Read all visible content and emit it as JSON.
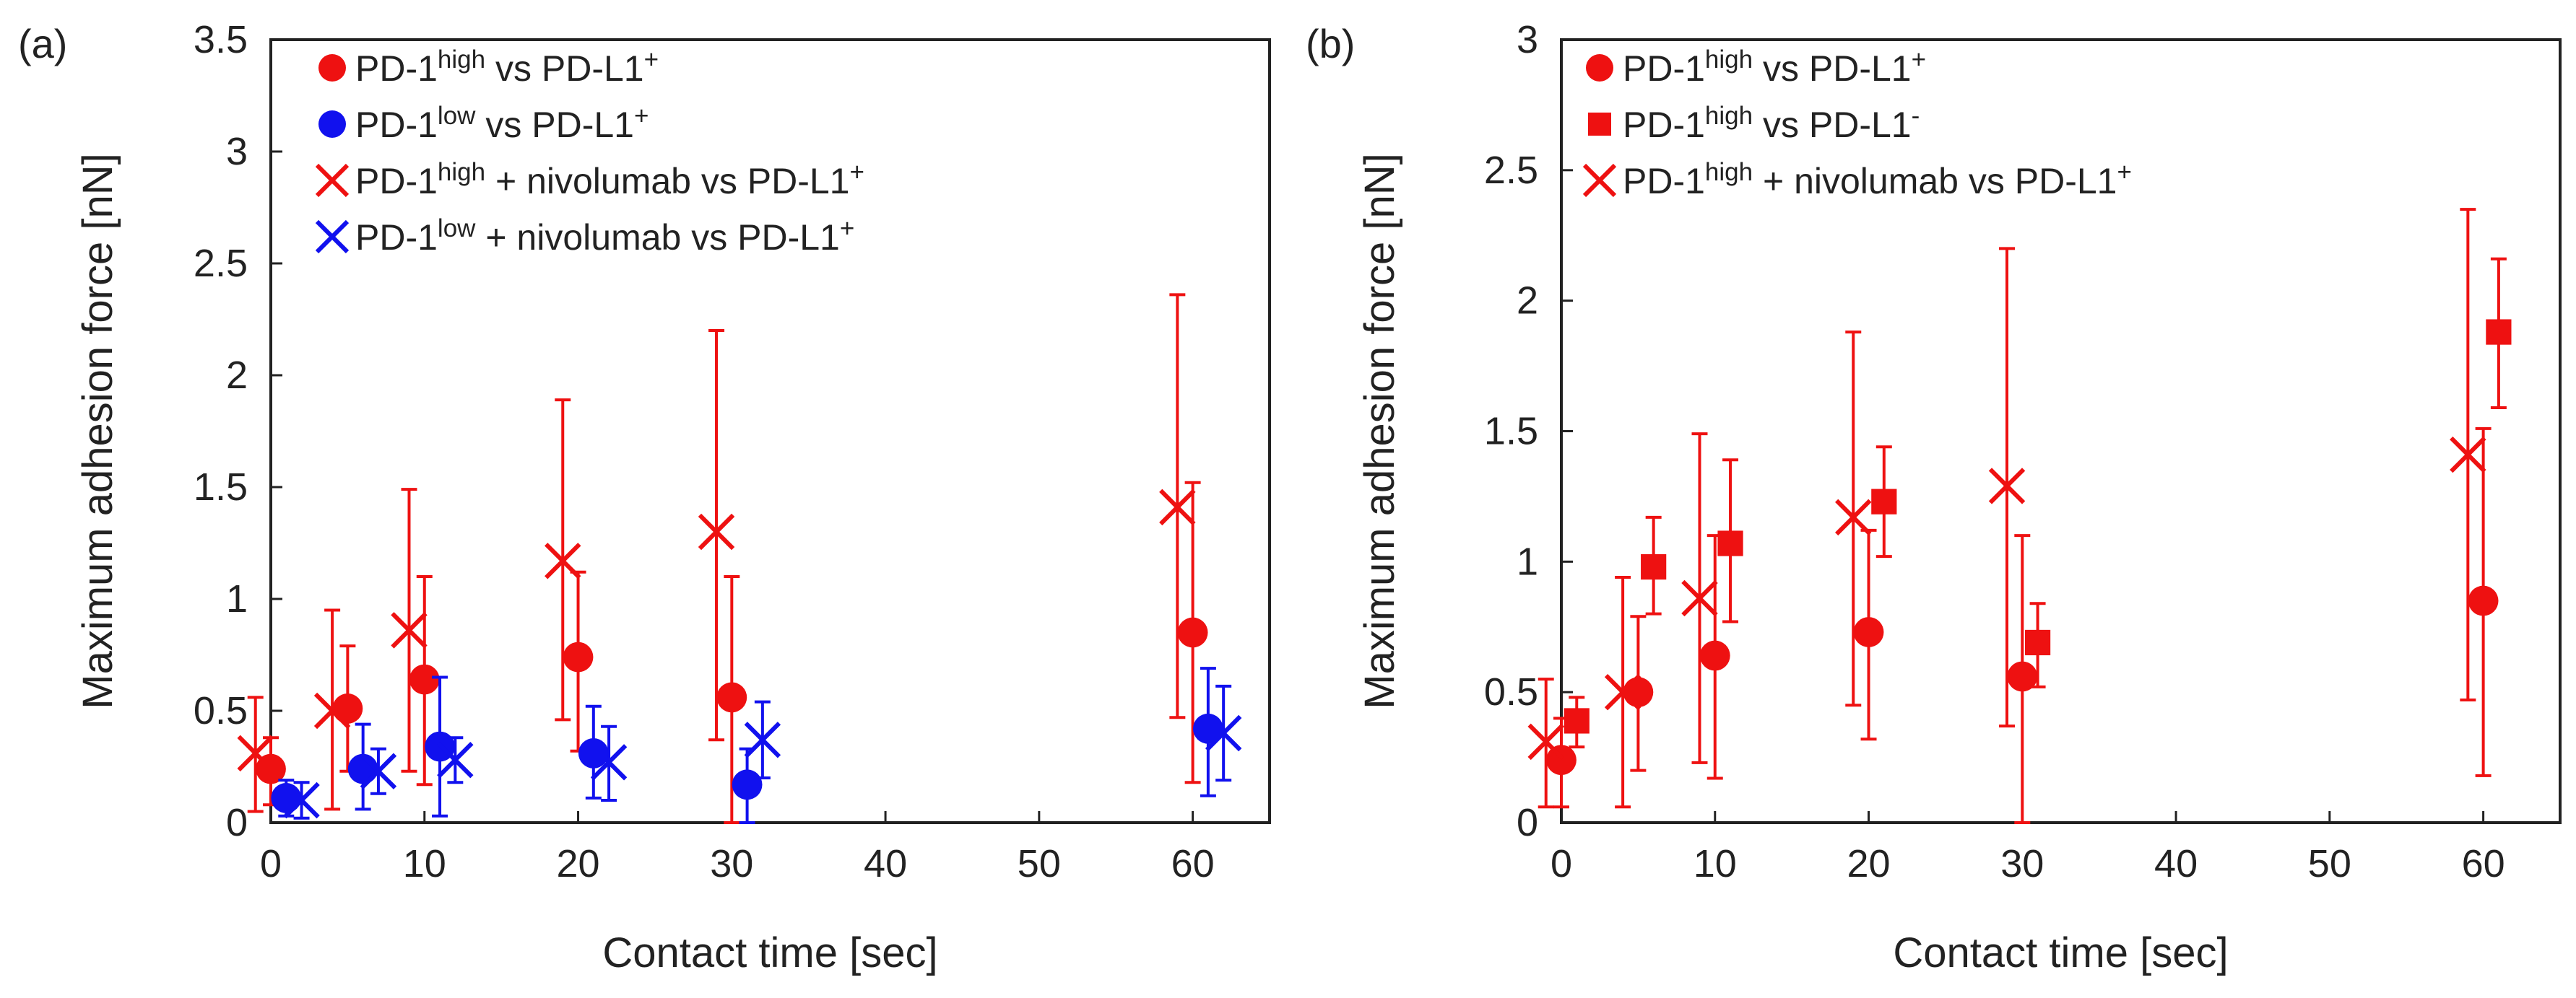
{
  "chart_data": [
    {
      "panel_label": "(a)",
      "type": "scatter",
      "xlabel": "Contact time [sec]",
      "ylabel": "Maximum adhesion force [nN]",
      "xlim": [
        0,
        65
      ],
      "ylim": [
        0,
        3.5
      ],
      "xticks": [
        "0",
        "10",
        "20",
        "30",
        "40",
        "50",
        "60"
      ],
      "yticks": [
        "0",
        "0.5",
        "1",
        "1.5",
        "2",
        "2.5",
        "3",
        "3.5"
      ],
      "legend_position": "top-left",
      "series": [
        {
          "name": "PD-1high vs PD-L1+",
          "legend": {
            "a": "PD-1",
            "sup1": "high",
            "b": " vs PD-L1",
            "sup2": "+"
          },
          "color": "#ee1111",
          "marker": "circle",
          "points": [
            {
              "x": 0,
              "y": 0.24,
              "lo": 0.08,
              "hi": 0.38
            },
            {
              "x": 5,
              "y": 0.51,
              "lo": 0.23,
              "hi": 0.79
            },
            {
              "x": 10,
              "y": 0.64,
              "lo": 0.17,
              "hi": 1.1
            },
            {
              "x": 20,
              "y": 0.74,
              "lo": 0.32,
              "hi": 1.12
            },
            {
              "x": 30,
              "y": 0.56,
              "lo": 0.0,
              "hi": 1.1
            },
            {
              "x": 60,
              "y": 0.85,
              "lo": 0.18,
              "hi": 1.52
            }
          ]
        },
        {
          "name": "PD-1low vs PD-L1+",
          "legend": {
            "a": "PD-1",
            "sup1": "low",
            "b": " vs PD-L1",
            "sup2": "+"
          },
          "color": "#1111ee",
          "marker": "circle",
          "points": [
            {
              "x": 1,
              "y": 0.11,
              "lo": 0.03,
              "hi": 0.19
            },
            {
              "x": 6,
              "y": 0.24,
              "lo": 0.06,
              "hi": 0.44
            },
            {
              "x": 11,
              "y": 0.34,
              "lo": 0.03,
              "hi": 0.65
            },
            {
              "x": 21,
              "y": 0.31,
              "lo": 0.11,
              "hi": 0.52
            },
            {
              "x": 31,
              "y": 0.17,
              "lo": 0.0,
              "hi": 0.33
            },
            {
              "x": 61,
              "y": 0.42,
              "lo": 0.12,
              "hi": 0.69
            }
          ]
        },
        {
          "name": "PD-1high + nivolumab vs PD-L1+",
          "legend": {
            "a": "PD-1",
            "sup1": "high",
            "b": " + nivolumab vs PD-L1",
            "sup2": "+"
          },
          "color": "#ee1111",
          "marker": "x",
          "points": [
            {
              "x": -1,
              "y": 0.31,
              "lo": 0.05,
              "hi": 0.56
            },
            {
              "x": 4,
              "y": 0.5,
              "lo": 0.06,
              "hi": 0.95
            },
            {
              "x": 9,
              "y": 0.86,
              "lo": 0.23,
              "hi": 1.49
            },
            {
              "x": 19,
              "y": 1.17,
              "lo": 0.46,
              "hi": 1.89
            },
            {
              "x": 29,
              "y": 1.3,
              "lo": 0.37,
              "hi": 2.2
            },
            {
              "x": 59,
              "y": 1.41,
              "lo": 0.47,
              "hi": 2.36
            }
          ]
        },
        {
          "name": "PD-1low + nivolumab vs PD-L1+",
          "legend": {
            "a": "PD-1",
            "sup1": "low",
            "b": " + nivolumab vs PD-L1",
            "sup2": "+"
          },
          "color": "#1111ee",
          "marker": "x",
          "points": [
            {
              "x": 2,
              "y": 0.1,
              "lo": 0.02,
              "hi": 0.18
            },
            {
              "x": 7,
              "y": 0.23,
              "lo": 0.13,
              "hi": 0.33
            },
            {
              "x": 12,
              "y": 0.28,
              "lo": 0.18,
              "hi": 0.38
            },
            {
              "x": 22,
              "y": 0.27,
              "lo": 0.1,
              "hi": 0.43
            },
            {
              "x": 32,
              "y": 0.37,
              "lo": 0.2,
              "hi": 0.54
            },
            {
              "x": 62,
              "y": 0.4,
              "lo": 0.19,
              "hi": 0.61
            }
          ]
        }
      ]
    },
    {
      "panel_label": "(b)",
      "type": "scatter",
      "xlabel": "Contact time [sec]",
      "ylabel": "Maximum adhesion force [nN]",
      "xlim": [
        0,
        65
      ],
      "ylim": [
        0,
        3
      ],
      "xticks": [
        "0",
        "10",
        "20",
        "30",
        "40",
        "50",
        "60"
      ],
      "yticks": [
        "0",
        "0.5",
        "1",
        "1.5",
        "2",
        "2.5",
        "3"
      ],
      "legend_position": "top-left",
      "series": [
        {
          "name": "PD-1high vs PD-L1+",
          "legend": {
            "a": "PD-1",
            "sup1": "high",
            "b": " vs PD-L1",
            "sup2": "+"
          },
          "color": "#ee1111",
          "marker": "circle",
          "points": [
            {
              "x": 0,
              "y": 0.24,
              "lo": 0.06,
              "hi": 0.4
            },
            {
              "x": 5,
              "y": 0.5,
              "lo": 0.2,
              "hi": 0.79
            },
            {
              "x": 10,
              "y": 0.64,
              "lo": 0.17,
              "hi": 1.1
            },
            {
              "x": 20,
              "y": 0.73,
              "lo": 0.32,
              "hi": 1.12
            },
            {
              "x": 30,
              "y": 0.56,
              "lo": 0.0,
              "hi": 1.1
            },
            {
              "x": 60,
              "y": 0.85,
              "lo": 0.18,
              "hi": 1.51
            }
          ]
        },
        {
          "name": "PD-1high vs PD-L1-",
          "legend": {
            "a": "PD-1",
            "sup1": "high",
            "b": " vs PD-L1",
            "sup2": "-"
          },
          "color": "#ee1111",
          "marker": "square",
          "points": [
            {
              "x": 1,
              "y": 0.39,
              "lo": 0.29,
              "hi": 0.48
            },
            {
              "x": 6,
              "y": 0.98,
              "lo": 0.8,
              "hi": 1.17
            },
            {
              "x": 11,
              "y": 1.07,
              "lo": 0.77,
              "hi": 1.39
            },
            {
              "x": 21,
              "y": 1.23,
              "lo": 1.02,
              "hi": 1.44
            },
            {
              "x": 31,
              "y": 0.69,
              "lo": 0.52,
              "hi": 0.84
            },
            {
              "x": 61,
              "y": 1.88,
              "lo": 1.59,
              "hi": 2.16
            }
          ]
        },
        {
          "name": "PD-1high + nivolumab vs PD-L1+",
          "legend": {
            "a": "PD-1",
            "sup1": "high",
            "b": " + nivolumab vs PD-L1",
            "sup2": "+"
          },
          "color": "#ee1111",
          "marker": "x",
          "points": [
            {
              "x": -1,
              "y": 0.31,
              "lo": 0.06,
              "hi": 0.55
            },
            {
              "x": 4,
              "y": 0.5,
              "lo": 0.06,
              "hi": 0.94
            },
            {
              "x": 9,
              "y": 0.86,
              "lo": 0.23,
              "hi": 1.49
            },
            {
              "x": 19,
              "y": 1.17,
              "lo": 0.45,
              "hi": 1.88
            },
            {
              "x": 29,
              "y": 1.29,
              "lo": 0.37,
              "hi": 2.2
            },
            {
              "x": 59,
              "y": 1.41,
              "lo": 0.47,
              "hi": 2.35
            }
          ]
        }
      ]
    }
  ]
}
